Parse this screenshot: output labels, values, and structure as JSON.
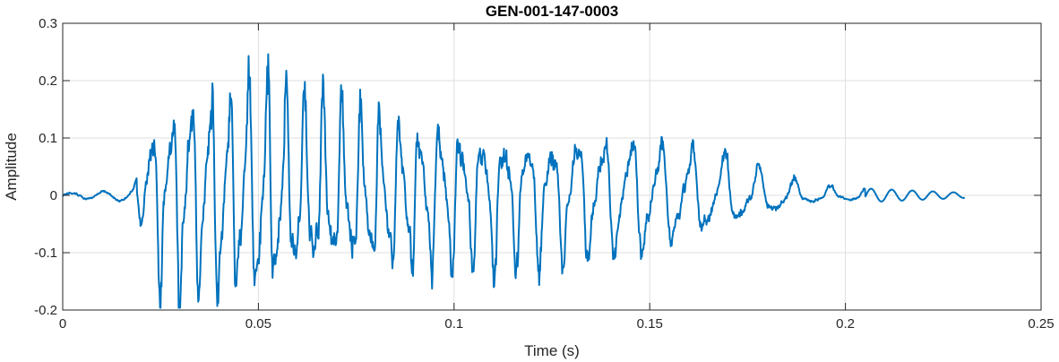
{
  "chart_data": {
    "type": "line",
    "title": "GEN-001-147-0003",
    "xlabel": "Time (s)",
    "ylabel": "Amplitude",
    "xlim": [
      0,
      0.25
    ],
    "ylim": [
      -0.2,
      0.3
    ],
    "x_ticks": [
      0,
      0.05,
      0.1,
      0.15,
      0.2,
      0.25
    ],
    "x_tick_labels": [
      "0",
      "0.05",
      "0.1",
      "0.15",
      "0.2",
      "0.25"
    ],
    "y_ticks": [
      -0.2,
      -0.1,
      0,
      0.1,
      0.2,
      0.3
    ],
    "y_tick_labels": [
      "-0.2",
      "-0.1",
      "0",
      "0.1",
      "0.2",
      "0.3"
    ],
    "grid": true,
    "legend": false,
    "series": [
      {
        "color": "#0072BD",
        "x_start": 0,
        "x_end": 0.2305,
        "sample_rate_hz": 8000,
        "description": "waveform signal: near-zero before 0.018 s, onset ~0.02 s, strong oscillation with peaks up to ~0.23 at 0.044 s and 0.054 s, minimum ~-0.195 at 0.030 s, gradual decay to near zero by ~0.23 s"
      }
    ],
    "envelope_points": [
      {
        "x": 0.0,
        "y": 0.004
      },
      {
        "x": 0.012,
        "y": 0.008
      },
      {
        "x": 0.018,
        "y": 0.012
      },
      {
        "x": 0.02,
        "y": 0.05
      },
      {
        "x": 0.023,
        "y": 0.19
      },
      {
        "x": 0.03,
        "y": 0.2
      },
      {
        "x": 0.044,
        "y": 0.23
      },
      {
        "x": 0.054,
        "y": 0.23
      },
      {
        "x": 0.06,
        "y": 0.2
      },
      {
        "x": 0.08,
        "y": 0.16
      },
      {
        "x": 0.1,
        "y": 0.15
      },
      {
        "x": 0.12,
        "y": 0.14
      },
      {
        "x": 0.15,
        "y": 0.12
      },
      {
        "x": 0.17,
        "y": 0.08
      },
      {
        "x": 0.18,
        "y": 0.05
      },
      {
        "x": 0.19,
        "y": 0.02
      },
      {
        "x": 0.2,
        "y": 0.015
      },
      {
        "x": 0.2305,
        "y": 0.005
      }
    ]
  }
}
